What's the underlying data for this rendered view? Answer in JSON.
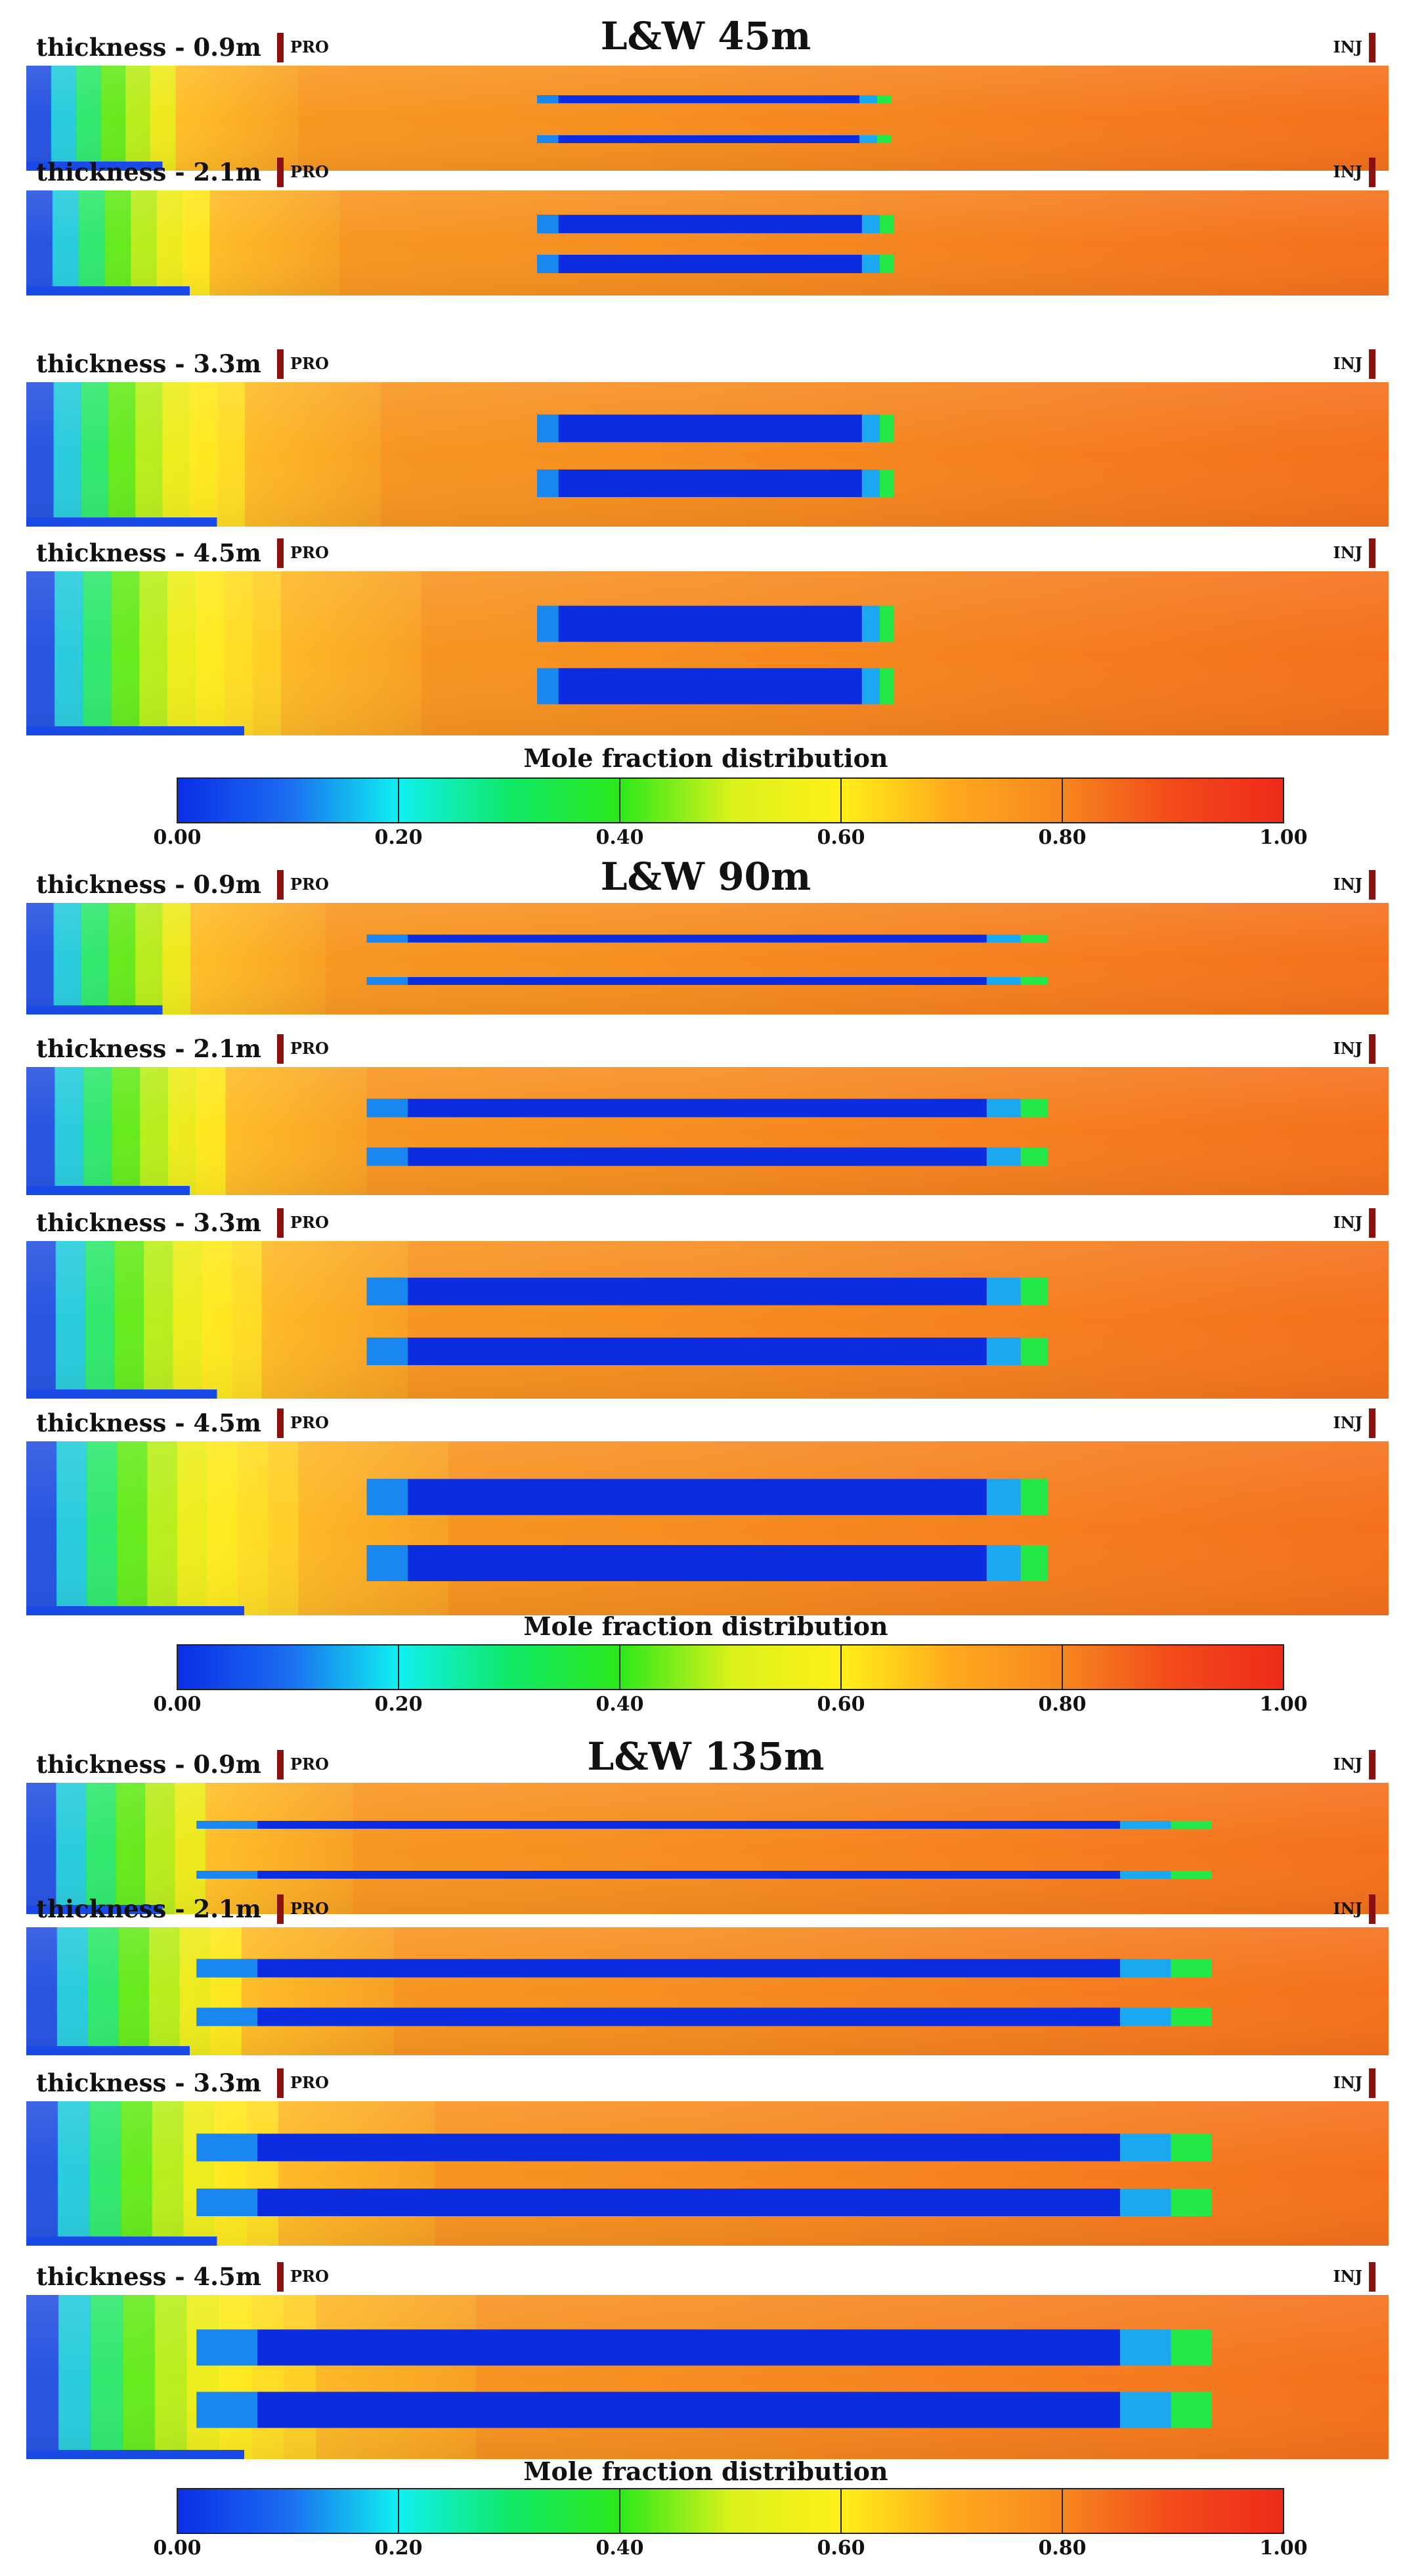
{
  "figure": {
    "colormap": [
      "#0a2ee6",
      "#1a6cf0",
      "#10f0f0",
      "#10e868",
      "#2ce81a",
      "#d8f21a",
      "#fff018",
      "#ffa91e",
      "#f7861f",
      "#f24a1a",
      "#ee2a1a"
    ],
    "labels": {
      "producer": "PRO",
      "injector": "INJ"
    },
    "colorbar": {
      "title": "Mole fraction distribution",
      "ticks": [
        "0.00",
        "0.20",
        "0.40",
        "0.60",
        "0.80",
        "1.00"
      ]
    },
    "sections": [
      {
        "title": "L&W 45m",
        "panels": [
          {
            "thickness_label": "thickness - 0.9m"
          },
          {
            "thickness_label": "thickness - 2.1m"
          },
          {
            "thickness_label": "thickness - 3.3m"
          },
          {
            "thickness_label": "thickness - 4.5m"
          }
        ]
      },
      {
        "title": "L&W 90m",
        "panels": [
          {
            "thickness_label": "thickness - 0.9m"
          },
          {
            "thickness_label": "thickness - 2.1m"
          },
          {
            "thickness_label": "thickness - 3.3m"
          },
          {
            "thickness_label": "thickness - 4.5m"
          }
        ]
      },
      {
        "title": "L&W 135m",
        "panels": [
          {
            "thickness_label": "thickness - 0.9m"
          },
          {
            "thickness_label": "thickness - 2.1m"
          },
          {
            "thickness_label": "thickness - 3.3m"
          },
          {
            "thickness_label": "thickness - 4.5m"
          }
        ]
      }
    ]
  }
}
